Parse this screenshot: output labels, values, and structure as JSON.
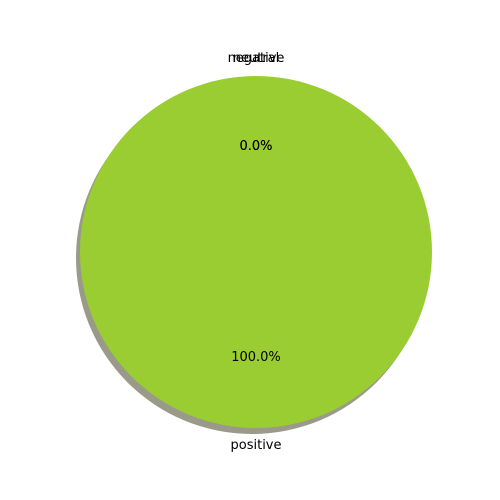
{
  "chart_data": {
    "type": "pie",
    "title": "",
    "categories": [
      "negative",
      "neutral",
      "positive"
    ],
    "values": [
      0.0,
      0.0,
      100.0
    ],
    "value_labels": [
      "0.0%",
      "0.0%",
      "100.0%"
    ],
    "colors": [
      "#ff4500",
      "#ffd700",
      "#9acd32"
    ],
    "shadow": true,
    "shadow_color": "#9a9a8a",
    "start_angle_deg": 90,
    "direction": "counterclockwise",
    "legend": "none"
  }
}
